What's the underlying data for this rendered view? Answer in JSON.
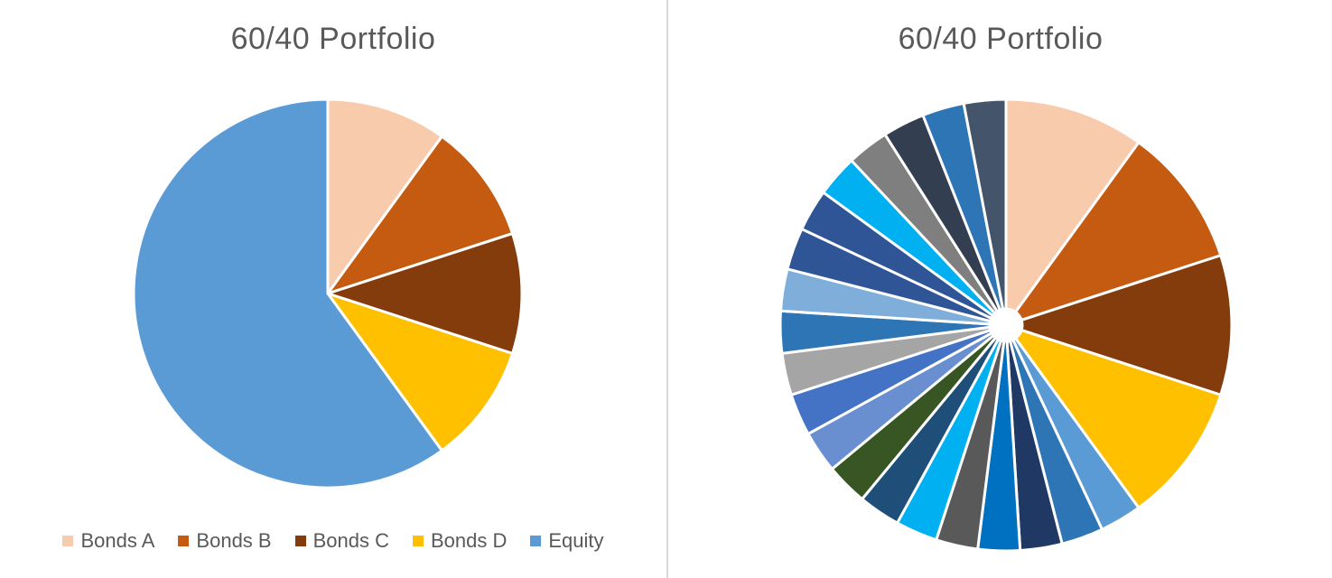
{
  "chart_data": [
    {
      "type": "pie",
      "title": "60/40 Portfolio",
      "slices": [
        {
          "name": "Bonds A",
          "value": 10,
          "color": "#F8CBAD"
        },
        {
          "name": "Bonds B",
          "value": 10,
          "color": "#C55A11"
        },
        {
          "name": "Bonds C",
          "value": 10,
          "color": "#843C0C"
        },
        {
          "name": "Bonds D",
          "value": 10,
          "color": "#FFC000"
        },
        {
          "name": "Equity",
          "value": 60,
          "color": "#5B9BD5"
        }
      ],
      "legend": "bottom"
    },
    {
      "type": "pie",
      "title": "60/40 Portfolio",
      "slices": [
        {
          "value": 10,
          "color": "#F8CBAD"
        },
        {
          "value": 10,
          "color": "#C55A11"
        },
        {
          "value": 10,
          "color": "#843C0C"
        },
        {
          "value": 10,
          "color": "#FFC000"
        },
        {
          "value": 3,
          "color": "#5B9BD5"
        },
        {
          "value": 3,
          "color": "#2E75B6"
        },
        {
          "value": 3,
          "color": "#203864"
        },
        {
          "value": 3,
          "color": "#0070C0"
        },
        {
          "value": 3,
          "color": "#595959"
        },
        {
          "value": 3,
          "color": "#00B0F0"
        },
        {
          "value": 3,
          "color": "#1F4E79"
        },
        {
          "value": 3,
          "color": "#375623"
        },
        {
          "value": 3,
          "color": "#6A8FD0"
        },
        {
          "value": 3,
          "color": "#4472C4"
        },
        {
          "value": 3,
          "color": "#A5A5A5"
        },
        {
          "value": 3,
          "color": "#2E75B6"
        },
        {
          "value": 3,
          "color": "#7FAEDB"
        },
        {
          "value": 3,
          "color": "#2F5597"
        },
        {
          "value": 3,
          "color": "#2F5597"
        },
        {
          "value": 3,
          "color": "#00B0F0"
        },
        {
          "value": 3,
          "color": "#7F7F7F"
        },
        {
          "value": 3,
          "color": "#333F50"
        },
        {
          "value": 3,
          "color": "#2E75B6"
        },
        {
          "value": 3,
          "color": "#44546A"
        }
      ],
      "legend": "none"
    }
  ]
}
